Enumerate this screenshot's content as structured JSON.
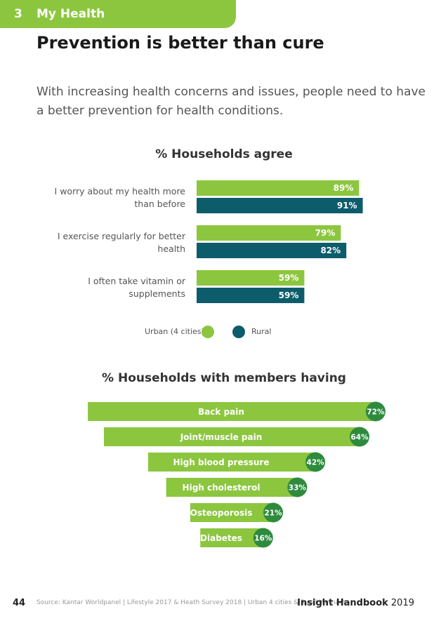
{
  "header": {
    "section_number": "3",
    "section_title": "My Health"
  },
  "headline": "Prevention is better than cure",
  "intro": "With increasing health concerns and issues, people need to have a better prevention for health conditions.",
  "chart_data": [
    {
      "type": "bar",
      "orientation": "horizontal",
      "title": "% Households agree",
      "categories": [
        [
          "I worry about my health more",
          "than before"
        ],
        [
          "I exercise regularly for better",
          "health"
        ],
        [
          "I often take vitamin or",
          "supplements"
        ]
      ],
      "series": [
        {
          "name": "Urban (4 cities)",
          "color": "#8cc63f",
          "values": [
            89,
            79,
            59
          ],
          "labels": [
            "89%",
            "79%",
            "59%"
          ]
        },
        {
          "name": "Rural",
          "color": "#0d5c6b",
          "values": [
            91,
            82,
            59
          ],
          "labels": [
            "91%",
            "82%",
            "59%"
          ]
        }
      ],
      "xlim": [
        0,
        100
      ],
      "legend_position": "bottom-center"
    },
    {
      "type": "bar",
      "orientation": "horizontal",
      "style": "funnel",
      "title": "% Households with members having",
      "categories": [
        "Back pain",
        "Joint/muscle pain",
        "High blood pressure",
        "High cholesterol",
        "Osteoporosis",
        "Diabetes"
      ],
      "values": [
        72,
        64,
        42,
        33,
        21,
        16
      ],
      "labels": [
        "72%",
        "64%",
        "42%",
        "33%",
        "21%",
        "16%"
      ],
      "bar_color": "#8cc63f",
      "badge_color": "#2e8b3e"
    }
  ],
  "footer": {
    "page_number": "44",
    "source": "Source: Kantar Worldpanel | Lifestyle 2017 & Heath Survey 2018 | Urban 4 cities & Rural Vietnam",
    "brand_bold": "Insight Handbook",
    "brand_year": " 2019"
  }
}
